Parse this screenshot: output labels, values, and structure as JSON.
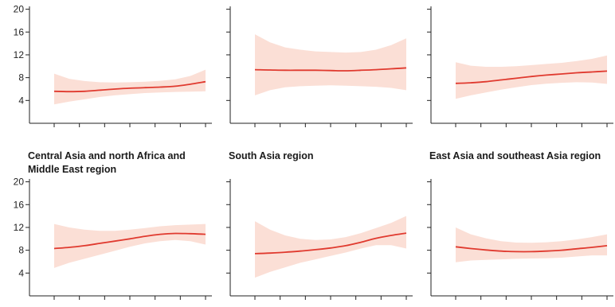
{
  "colors": {
    "line": "#e03a2f",
    "band": "#fbdfd6",
    "axis": "#222222"
  },
  "chart_data": [
    {
      "type": "line",
      "title_lines": [],
      "ylim": [
        0,
        20.5
      ],
      "yticks": [
        4,
        8,
        12,
        16,
        20
      ],
      "x_ticks": 7,
      "series": [
        {
          "x": [
            0,
            0.1,
            0.2,
            0.3,
            0.4,
            0.5,
            0.6,
            0.7,
            0.8,
            0.9,
            1.0
          ],
          "y": [
            5.6,
            5.55,
            5.6,
            5.8,
            6.0,
            6.15,
            6.25,
            6.35,
            6.5,
            6.85,
            7.3
          ],
          "lower": [
            3.3,
            3.8,
            4.2,
            4.6,
            4.9,
            5.1,
            5.3,
            5.4,
            5.5,
            5.55,
            5.6
          ],
          "upper": [
            8.7,
            7.8,
            7.4,
            7.2,
            7.15,
            7.2,
            7.3,
            7.45,
            7.7,
            8.3,
            9.4
          ]
        }
      ]
    },
    {
      "type": "line",
      "title_lines": [],
      "ylim": [
        0,
        20.5
      ],
      "yticks": [
        4,
        8,
        12,
        16,
        20
      ],
      "x_ticks": 7,
      "series": [
        {
          "x": [
            0,
            0.1,
            0.2,
            0.3,
            0.4,
            0.5,
            0.6,
            0.7,
            0.8,
            0.9,
            1.0
          ],
          "y": [
            9.4,
            9.35,
            9.3,
            9.3,
            9.3,
            9.25,
            9.2,
            9.3,
            9.4,
            9.55,
            9.7
          ],
          "lower": [
            4.9,
            5.8,
            6.3,
            6.5,
            6.6,
            6.65,
            6.6,
            6.5,
            6.4,
            6.2,
            5.8
          ],
          "upper": [
            15.6,
            14.2,
            13.3,
            12.9,
            12.6,
            12.5,
            12.4,
            12.5,
            12.9,
            13.7,
            14.9
          ]
        }
      ]
    },
    {
      "type": "line",
      "title_lines": [],
      "ylim": [
        0,
        20.5
      ],
      "yticks": [
        4,
        8,
        12,
        16,
        20
      ],
      "x_ticks": 7,
      "series": [
        {
          "x": [
            0,
            0.1,
            0.2,
            0.3,
            0.4,
            0.5,
            0.6,
            0.7,
            0.8,
            0.9,
            1.0
          ],
          "y": [
            7.0,
            7.1,
            7.3,
            7.6,
            7.9,
            8.2,
            8.45,
            8.65,
            8.85,
            9.0,
            9.15
          ],
          "lower": [
            4.3,
            4.9,
            5.4,
            5.9,
            6.3,
            6.7,
            6.95,
            7.1,
            7.2,
            7.15,
            6.9
          ],
          "upper": [
            10.7,
            10.1,
            9.9,
            9.9,
            10.0,
            10.2,
            10.4,
            10.6,
            10.9,
            11.3,
            11.9
          ]
        }
      ]
    },
    {
      "type": "line",
      "title_lines": [
        "Central Asia and north Africa and",
        "Middle East region"
      ],
      "ylim": [
        0,
        20.5
      ],
      "yticks": [
        4,
        8,
        12,
        16,
        20
      ],
      "x_ticks": 7,
      "series": [
        {
          "x": [
            0,
            0.1,
            0.2,
            0.3,
            0.4,
            0.5,
            0.6,
            0.7,
            0.8,
            0.9,
            1.0
          ],
          "y": [
            8.3,
            8.5,
            8.8,
            9.2,
            9.6,
            10.0,
            10.45,
            10.8,
            10.95,
            10.9,
            10.8
          ],
          "lower": [
            4.9,
            5.8,
            6.5,
            7.2,
            7.9,
            8.6,
            9.2,
            9.6,
            9.8,
            9.6,
            9.0
          ],
          "upper": [
            12.6,
            12.0,
            11.6,
            11.4,
            11.4,
            11.6,
            11.9,
            12.2,
            12.4,
            12.5,
            12.6
          ]
        }
      ]
    },
    {
      "type": "line",
      "title_lines": [
        "South Asia region"
      ],
      "ylim": [
        0,
        20.5
      ],
      "yticks": [
        4,
        8,
        12,
        16,
        20
      ],
      "x_ticks": 7,
      "series": [
        {
          "x": [
            0,
            0.1,
            0.2,
            0.3,
            0.4,
            0.5,
            0.6,
            0.7,
            0.8,
            0.9,
            1.0
          ],
          "y": [
            7.4,
            7.5,
            7.65,
            7.85,
            8.1,
            8.4,
            8.8,
            9.4,
            10.1,
            10.6,
            11.0
          ],
          "lower": [
            3.2,
            4.2,
            5.0,
            5.8,
            6.4,
            7.0,
            7.6,
            8.3,
            8.9,
            8.9,
            8.3
          ],
          "upper": [
            13.1,
            11.6,
            10.6,
            10.0,
            9.8,
            9.9,
            10.3,
            11.0,
            11.9,
            12.8,
            14.0
          ]
        }
      ]
    },
    {
      "type": "line",
      "title_lines": [
        "East Asia and southeast Asia region"
      ],
      "ylim": [
        0,
        20.5
      ],
      "yticks": [
        4,
        8,
        12,
        16,
        20
      ],
      "x_ticks": 7,
      "series": [
        {
          "x": [
            0,
            0.1,
            0.2,
            0.3,
            0.4,
            0.5,
            0.6,
            0.7,
            0.8,
            0.9,
            1.0
          ],
          "y": [
            8.6,
            8.3,
            8.05,
            7.85,
            7.75,
            7.75,
            7.85,
            8.0,
            8.25,
            8.5,
            8.8
          ],
          "lower": [
            5.9,
            6.2,
            6.3,
            6.4,
            6.5,
            6.55,
            6.6,
            6.7,
            6.9,
            7.1,
            7.1
          ],
          "upper": [
            12.0,
            10.8,
            10.1,
            9.6,
            9.35,
            9.3,
            9.4,
            9.6,
            9.9,
            10.3,
            10.8
          ]
        }
      ]
    }
  ]
}
